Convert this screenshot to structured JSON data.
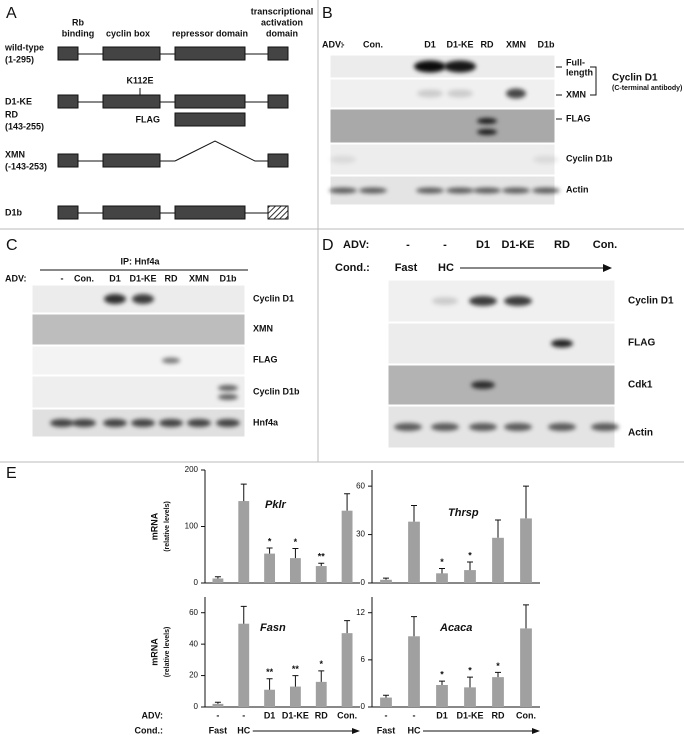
{
  "panel_a": {
    "letter": "A",
    "headers": [
      [
        "Rb",
        "binding"
      ],
      [
        "cyclin box"
      ],
      [
        "repressor domain"
      ],
      [
        "transcriptional",
        "activation",
        "domain"
      ]
    ],
    "rows": [
      {
        "name": "wild-type",
        "range": "(1-295)"
      },
      {
        "name": "D1-KE",
        "mutation": "K112E"
      },
      {
        "name": "RD",
        "range": "(143-255)",
        "tag": "FLAG"
      },
      {
        "name": "XMN",
        "range": "(-143-253)"
      },
      {
        "name": "D1b"
      }
    ]
  },
  "panel_b": {
    "letter": "B",
    "adv_label": "ADV:",
    "lanes": [
      "-",
      "Con.",
      "D1",
      "D1-KE",
      "RD",
      "XMN",
      "D1b"
    ],
    "labels": {
      "full_length": [
        "Full-",
        "length"
      ],
      "xmn": "XMN",
      "antibody": [
        "Cyclin D1",
        "(C-terminal antibody)"
      ],
      "flag": "FLAG",
      "d1b": "Cyclin D1b",
      "actin": "Actin"
    }
  },
  "panel_c": {
    "letter": "C",
    "ip_label": "IP: Hnf4a",
    "adv_label": "ADV:",
    "lanes": [
      "-",
      "Con.",
      "D1",
      "D1-KE",
      "RD",
      "XMN",
      "D1b"
    ],
    "labels": [
      "Cyclin D1",
      "XMN",
      "FLAG",
      "Cyclin D1b",
      "Hnf4a"
    ]
  },
  "panel_d": {
    "letter": "D",
    "adv_label": "ADV:",
    "lanes": [
      "-",
      "-",
      "D1",
      "D1-KE",
      "RD",
      "Con."
    ],
    "cond_label": "Cond.:",
    "cond": [
      "Fast",
      "HC"
    ],
    "labels": [
      "Cyclin D1",
      "FLAG",
      "Cdk1",
      "Actin"
    ]
  },
  "panel_e": {
    "letter": "E",
    "adv_label": "ADV:",
    "cond_label": "Cond.:"
  },
  "chart_data": [
    {
      "type": "bar",
      "title": "Pklr",
      "ylabel": [
        "mRNA",
        "(relative levels)"
      ],
      "categories": [
        null,
        null,
        null,
        null,
        null,
        null
      ],
      "values": [
        8,
        145,
        52,
        44,
        30,
        128
      ],
      "errors": [
        3,
        30,
        10,
        17,
        5,
        30
      ],
      "annotations": [
        null,
        null,
        "*",
        "*",
        "**",
        null
      ],
      "color": "#a0a0a0",
      "ylim": [
        0,
        200
      ],
      "yticks": [
        0,
        100,
        200
      ]
    },
    {
      "type": "bar",
      "title": "Thrsp",
      "categories": [
        null,
        null,
        null,
        null,
        null,
        null
      ],
      "values": [
        2,
        38,
        6,
        8,
        28,
        40
      ],
      "errors": [
        1,
        10,
        3,
        5,
        11,
        20
      ],
      "annotations": [
        null,
        null,
        "*",
        "*",
        null,
        null
      ],
      "color": "#a0a0a0",
      "ylim": [
        0,
        70
      ],
      "yticks": [
        0,
        30,
        60
      ]
    },
    {
      "type": "bar",
      "title": "Fasn",
      "ylabel": [
        "mRNA",
        "(relative levels)"
      ],
      "categories": [
        "-",
        "-",
        "D1",
        "D1-KE",
        "RD",
        "Con."
      ],
      "cond_labels": [
        "Fast",
        "HC"
      ],
      "values": [
        2,
        53,
        11,
        13,
        16,
        47
      ],
      "errors": [
        1,
        11,
        7,
        7,
        7,
        8
      ],
      "annotations": [
        null,
        null,
        "**",
        "**",
        "*",
        null
      ],
      "color": "#a0a0a0",
      "ylim": [
        0,
        70
      ],
      "yticks": [
        0,
        20,
        40,
        60
      ]
    },
    {
      "type": "bar",
      "title": "Acaca",
      "categories": [
        "-",
        "-",
        "D1",
        "D1-KE",
        "RD",
        "Con."
      ],
      "cond_labels": [
        "Fast",
        "HC"
      ],
      "values": [
        1.2,
        9,
        2.8,
        2.5,
        3.8,
        10
      ],
      "errors": [
        0.3,
        2.5,
        0.5,
        1.3,
        0.6,
        3
      ],
      "annotations": [
        null,
        null,
        "*",
        "*",
        "*",
        null
      ],
      "color": "#a0a0a0",
      "ylim": [
        0,
        14
      ],
      "yticks": [
        0,
        6,
        12
      ]
    }
  ]
}
